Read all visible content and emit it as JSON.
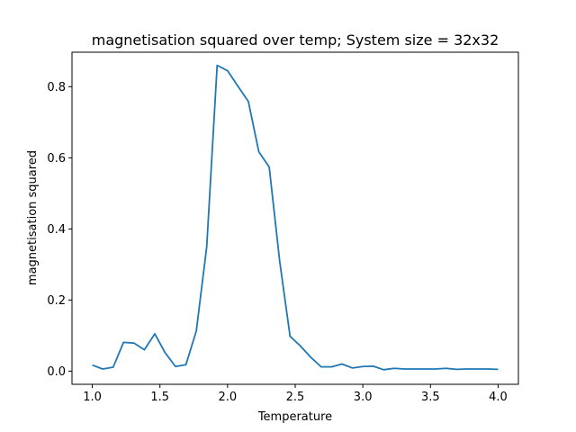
{
  "chart_data": {
    "type": "line",
    "title": "magnetisation squared over temp; System size = 32x32",
    "xlabel": "Temperature",
    "ylabel": "magnetisation squared",
    "xlim": [
      0.85,
      4.15
    ],
    "ylim": [
      -0.037,
      0.897
    ],
    "xticks": [
      "1.0",
      "1.5",
      "2.0",
      "2.5",
      "3.0",
      "3.5",
      "4.0"
    ],
    "yticks": [
      "0.0",
      "0.2",
      "0.4",
      "0.6",
      "0.8"
    ],
    "grid": false,
    "line_color": "#1f77b4",
    "series": [
      {
        "x": [
          1.0,
          1.077,
          1.154,
          1.231,
          1.308,
          1.385,
          1.462,
          1.538,
          1.615,
          1.692,
          1.769,
          1.846,
          1.923,
          2.0,
          2.077,
          2.154,
          2.231,
          2.308,
          2.385,
          2.462,
          2.538,
          2.615,
          2.692,
          2.769,
          2.846,
          2.923,
          3.0,
          3.077,
          3.154,
          3.231,
          3.308,
          3.385,
          3.462,
          3.538,
          3.615,
          3.692,
          3.769,
          3.846,
          3.923,
          4.0
        ],
        "y": [
          0.017,
          0.006,
          0.011,
          0.081,
          0.079,
          0.06,
          0.105,
          0.052,
          0.013,
          0.018,
          0.113,
          0.35,
          0.86,
          0.845,
          0.801,
          0.758,
          0.617,
          0.574,
          0.31,
          0.098,
          0.071,
          0.039,
          0.012,
          0.012,
          0.02,
          0.009,
          0.013,
          0.014,
          0.004,
          0.008,
          0.006,
          0.006,
          0.006,
          0.006,
          0.008,
          0.005,
          0.006,
          0.006,
          0.006,
          0.005
        ]
      }
    ]
  }
}
